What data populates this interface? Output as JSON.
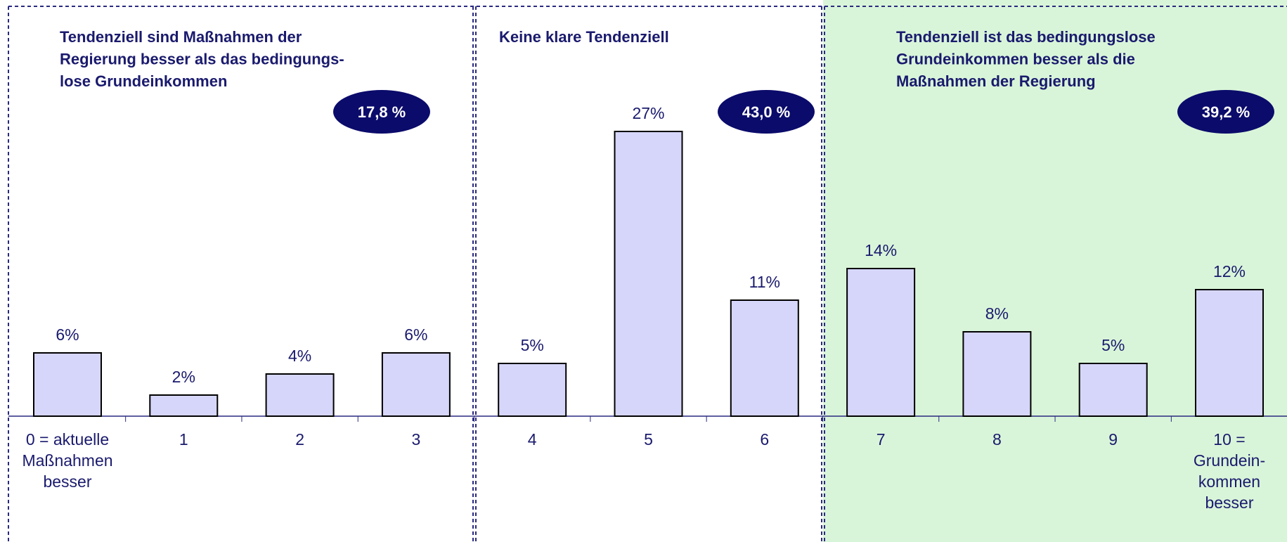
{
  "chart_data": {
    "type": "bar",
    "categories": [
      "0 = aktuelle\nMaßnahmen\nbesser",
      "1",
      "2",
      "3",
      "4",
      "5",
      "6",
      "7",
      "8",
      "9",
      "10 =\nGrundein-\nkommen\nbesser"
    ],
    "values": [
      6,
      2,
      4,
      6,
      5,
      27,
      11,
      14,
      8,
      5,
      12
    ],
    "value_labels": [
      "6%",
      "2%",
      "4%",
      "6%",
      "5%",
      "27%",
      "11%",
      "14%",
      "8%",
      "5%",
      "12%"
    ],
    "color": "#d6d6fa",
    "groups": [
      {
        "title": "Tendenziell sind Maßnahmen der\nRegierung besser als das bedingungs-\nlose Grundeinkommen",
        "share": {
          "value": 17.8,
          "label": "17,8 %"
        }
      },
      {
        "title": "Keine klare Tendenziell",
        "share": {
          "value": 43.0,
          "label": "43,0 %"
        }
      },
      {
        "title": "Tendenziell ist das bedingungslose\nGrundeinkommen besser als die\nMaßnahmen der Regierung",
        "share": {
          "value": 39.2,
          "label": "39,2 %"
        }
      }
    ]
  }
}
